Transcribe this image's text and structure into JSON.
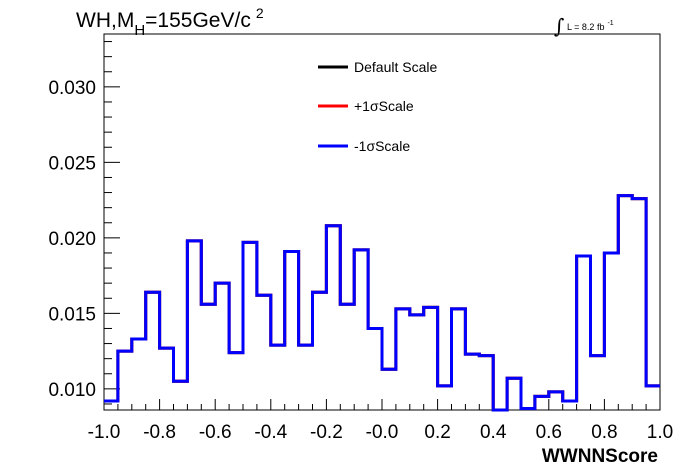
{
  "chart_data": {
    "type": "line",
    "title_main": "WH,M",
    "title_sub": "H",
    "title_rest": "=155GeV/c",
    "title_sup": "2",
    "lumi_label": "L = 8.2 fb",
    "lumi_sup": "-1",
    "xlabel": "WWNNScore",
    "ylabel": "",
    "xlim": [
      -1.0,
      1.0
    ],
    "ylim": [
      0.0086,
      0.0335
    ],
    "x_ticks": [
      "-1.0",
      "-0.8",
      "-0.6",
      "-0.4",
      "-0.2",
      "-0.0",
      "0.2",
      "0.4",
      "0.6",
      "0.8",
      "1.0"
    ],
    "y_ticks": [
      "0.010",
      "0.015",
      "0.020",
      "0.025",
      "0.030"
    ],
    "bin_edges": [
      -1.0,
      -0.95,
      -0.9,
      -0.85,
      -0.8,
      -0.75,
      -0.7,
      -0.65,
      -0.6,
      -0.55,
      -0.5,
      -0.45,
      -0.4,
      -0.35,
      -0.3,
      -0.25,
      -0.2,
      -0.15,
      -0.1,
      -0.05,
      0.0,
      0.05,
      0.1,
      0.15,
      0.2,
      0.25,
      0.3,
      0.35,
      0.4,
      0.45,
      0.5,
      0.55,
      0.6,
      0.65,
      0.7,
      0.75,
      0.8,
      0.85,
      0.9,
      0.95,
      1.0
    ],
    "series": [
      {
        "name": "Default Scale",
        "color": "#000000",
        "values": [
          0.0092,
          0.0125,
          0.0133,
          0.0164,
          0.0127,
          0.0105,
          0.0198,
          0.0156,
          0.017,
          0.0124,
          0.0197,
          0.0162,
          0.0129,
          0.0191,
          0.0129,
          0.0164,
          0.0208,
          0.0156,
          0.0192,
          0.014,
          0.0113,
          0.0153,
          0.0149,
          0.0154,
          0.0102,
          0.0153,
          0.0123,
          0.0122,
          0.0086,
          0.0107,
          0.0087,
          0.0095,
          0.0098,
          0.0092,
          0.0188,
          0.0122,
          0.019,
          0.0228,
          0.0226,
          0.0102
        ]
      },
      {
        "name": "+1σScale",
        "color": "#ff0000",
        "values": [
          0.0092,
          0.0125,
          0.0133,
          0.0164,
          0.0127,
          0.0105,
          0.0198,
          0.0156,
          0.017,
          0.0124,
          0.0197,
          0.0162,
          0.0129,
          0.0191,
          0.0129,
          0.0164,
          0.0208,
          0.0156,
          0.0192,
          0.014,
          0.0113,
          0.0153,
          0.0149,
          0.0154,
          0.0102,
          0.0153,
          0.0123,
          0.0122,
          0.0086,
          0.0107,
          0.0087,
          0.0095,
          0.0098,
          0.0092,
          0.0188,
          0.0122,
          0.019,
          0.0228,
          0.0226,
          0.0102
        ]
      },
      {
        "name": "-1σScale",
        "color": "#0000ff",
        "values": [
          0.0092,
          0.0125,
          0.0133,
          0.0164,
          0.0127,
          0.0105,
          0.0198,
          0.0156,
          0.017,
          0.0124,
          0.0197,
          0.0162,
          0.0129,
          0.0191,
          0.0129,
          0.0164,
          0.0208,
          0.0156,
          0.0192,
          0.014,
          0.0113,
          0.0153,
          0.0149,
          0.0154,
          0.0102,
          0.0153,
          0.0123,
          0.0122,
          0.0086,
          0.0107,
          0.0087,
          0.0095,
          0.0098,
          0.0092,
          0.0188,
          0.0122,
          0.019,
          0.0228,
          0.0226,
          0.0102
        ]
      }
    ],
    "legend_position": "top-center",
    "grid": false,
    "histogram_style": "step"
  }
}
